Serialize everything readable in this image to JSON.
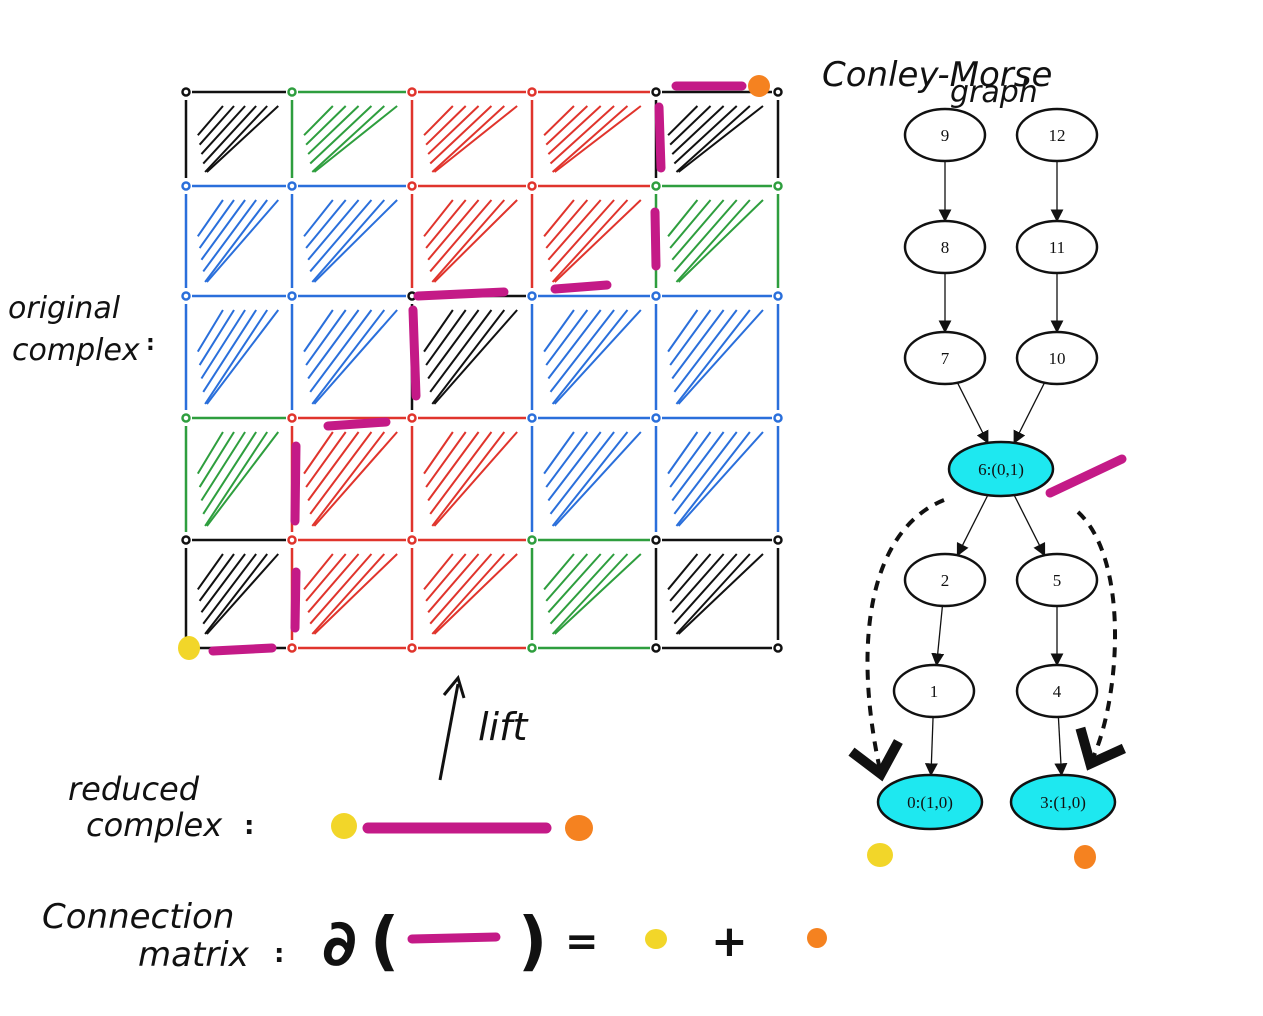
{
  "labels": {
    "original_complex_line1": "original",
    "original_complex_line2": "complex",
    "reduced_complex_line1": "reduced",
    "reduced_complex_line2": "complex",
    "lift": "lift",
    "connection_matrix_line1": "Connection",
    "connection_matrix_line2": "matrix",
    "graph_title_line1": "Conley-Morse",
    "graph_title_line2": "graph"
  },
  "equation": {
    "boundary_symbol": "∂",
    "open_paren": "(",
    "close_paren": ")",
    "equals": "=",
    "plus": "+"
  },
  "colors": {
    "black": "#111111",
    "green": "#2e9e3e",
    "red": "#e0342c",
    "blue": "#2a6fdb",
    "magenta": "#c41a87",
    "yellow": "#f2d629",
    "orange": "#f58220",
    "cyan": "#1ee8f0"
  },
  "grid": {
    "rows": 5,
    "cols": 5,
    "cell_colors": [
      [
        "black",
        "green",
        "red",
        "red",
        "black"
      ],
      [
        "blue",
        "blue",
        "red",
        "red",
        "green"
      ],
      [
        "blue",
        "blue",
        "black",
        "blue",
        "blue"
      ],
      [
        "green",
        "red",
        "red",
        "blue",
        "blue"
      ],
      [
        "black",
        "red",
        "red",
        "green",
        "black"
      ]
    ]
  },
  "graph": {
    "nodes": [
      {
        "id": "n9",
        "label": "9",
        "highlight": false
      },
      {
        "id": "n12",
        "label": "12",
        "highlight": false
      },
      {
        "id": "n8",
        "label": "8",
        "highlight": false
      },
      {
        "id": "n11",
        "label": "11",
        "highlight": false
      },
      {
        "id": "n7",
        "label": "7",
        "highlight": false
      },
      {
        "id": "n10",
        "label": "10",
        "highlight": false
      },
      {
        "id": "n6",
        "label": "6:(0,1)",
        "highlight": true
      },
      {
        "id": "n2",
        "label": "2",
        "highlight": false
      },
      {
        "id": "n5",
        "label": "5",
        "highlight": false
      },
      {
        "id": "n1",
        "label": "1",
        "highlight": false
      },
      {
        "id": "n4",
        "label": "4",
        "highlight": false
      },
      {
        "id": "n0",
        "label": "0:(1,0)",
        "highlight": true
      },
      {
        "id": "n3",
        "label": "3:(1,0)",
        "highlight": true
      }
    ],
    "edges": [
      [
        "n9",
        "n8"
      ],
      [
        "n8",
        "n7"
      ],
      [
        "n7",
        "n6"
      ],
      [
        "n12",
        "n11"
      ],
      [
        "n11",
        "n10"
      ],
      [
        "n10",
        "n6"
      ],
      [
        "n6",
        "n2"
      ],
      [
        "n2",
        "n1"
      ],
      [
        "n1",
        "n0"
      ],
      [
        "n6",
        "n5"
      ],
      [
        "n5",
        "n4"
      ],
      [
        "n4",
        "n3"
      ]
    ]
  }
}
